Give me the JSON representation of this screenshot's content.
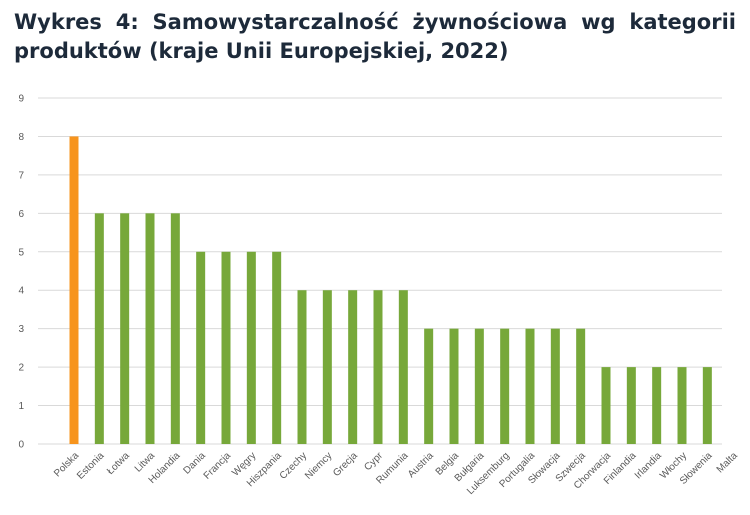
{
  "chart_data": {
    "type": "bar",
    "title": "Wykres 4: Samowystarczalność żywnościowa wg kategorii produktów (kraje Unii Europejskiej, 2022)",
    "xlabel": "",
    "ylabel": "",
    "ylim": [
      0,
      9
    ],
    "yticks": [
      0,
      1,
      2,
      3,
      4,
      5,
      6,
      7,
      8,
      9
    ],
    "grid": true,
    "legend": "none",
    "categories": [
      "Polska",
      "Estonia",
      "Łotwa",
      "Litwa",
      "Holandia",
      "Dania",
      "Francja",
      "Węgry",
      "Hiszpania",
      "Czechy",
      "Niemcy",
      "Grecja",
      "Cypr",
      "Rumunia",
      "Austria",
      "Belgia",
      "Bułgaria",
      "Luksemburg",
      "Portugalia",
      "Słowacja",
      "Szwecja",
      "Chorwacja",
      "Finlandia",
      "Irlandia",
      "Włochy",
      "Słowenia",
      "Malta"
    ],
    "values": [
      8,
      6,
      6,
      6,
      6,
      5,
      5,
      5,
      5,
      4,
      4,
      4,
      4,
      4,
      3,
      3,
      3,
      3,
      3,
      3,
      3,
      2,
      2,
      2,
      2,
      2,
      0
    ],
    "colors": {
      "highlight": "#f7941d",
      "default": "#77a83a",
      "grid": "#d9d9d9",
      "axis_text": "#595959",
      "title": "#1d2a3a"
    },
    "highlight_category": "Polska"
  }
}
